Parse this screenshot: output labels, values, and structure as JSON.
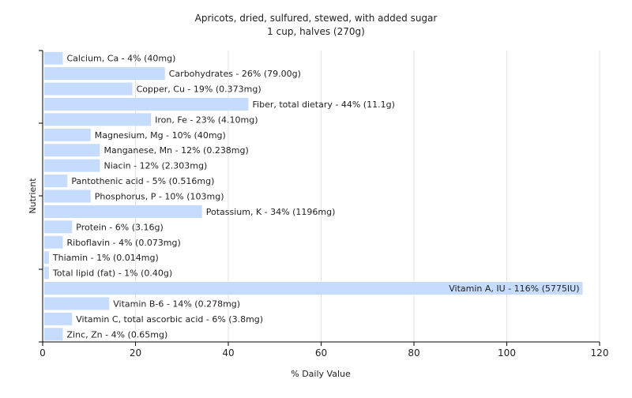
{
  "chart_data": {
    "type": "bar",
    "orientation": "horizontal",
    "title": "Apricots, dried, sulfured, stewed, with added sugar",
    "subtitle": "1 cup, halves (270g)",
    "xlabel": "% Daily Value",
    "ylabel": "Nutrient",
    "xlim": [
      0,
      120
    ],
    "xticks": [
      0,
      20,
      40,
      60,
      80,
      100,
      120
    ],
    "grid": true,
    "bar_color": "#c6dcff",
    "categories": [
      "Calcium, Ca",
      "Carbohydrates",
      "Copper, Cu",
      "Fiber, total dietary",
      "Iron, Fe",
      "Magnesium, Mg",
      "Manganese, Mn",
      "Niacin",
      "Pantothenic acid",
      "Phosphorus, P",
      "Potassium, K",
      "Protein",
      "Riboflavin",
      "Thiamin",
      "Total lipid (fat)",
      "Vitamin A, IU",
      "Vitamin B-6",
      "Vitamin C, total ascorbic acid",
      "Zinc, Zn"
    ],
    "values": [
      4,
      26,
      19,
      44,
      23,
      10,
      12,
      12,
      5,
      10,
      34,
      6,
      4,
      1,
      1,
      116,
      14,
      6,
      4
    ],
    "labels": [
      "Calcium, Ca - 4% (40mg)",
      "Carbohydrates - 26% (79.00g)",
      "Copper, Cu - 19% (0.373mg)",
      "Fiber, total dietary - 44% (11.1g)",
      "Iron, Fe - 23% (4.10mg)",
      "Magnesium, Mg - 10% (40mg)",
      "Manganese, Mn - 12% (0.238mg)",
      "Niacin - 12% (2.303mg)",
      "Pantothenic acid - 5% (0.516mg)",
      "Phosphorus, P - 10% (103mg)",
      "Potassium, K - 34% (1196mg)",
      "Protein - 6% (3.16g)",
      "Riboflavin - 4% (0.073mg)",
      "Thiamin - 1% (0.014mg)",
      "Total lipid (fat) - 1% (0.40g)",
      "Vitamin A, IU - 116% (5775IU)",
      "Vitamin B-6 - 14% (0.278mg)",
      "Vitamin C, total ascorbic acid - 6% (3.8mg)",
      "Zinc, Zn - 4% (0.65mg)"
    ]
  }
}
